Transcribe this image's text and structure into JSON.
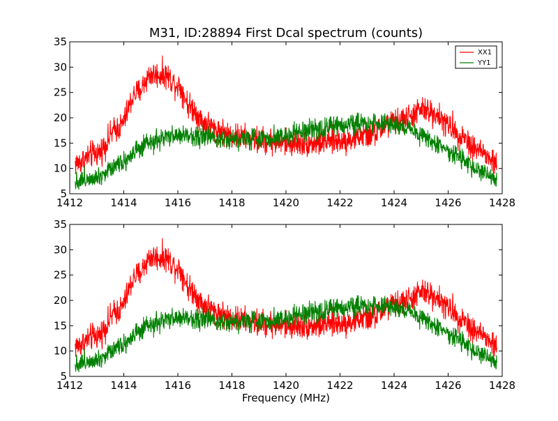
{
  "chart_data": [
    {
      "type": "line",
      "title": "M31, ID:28894 First Dcal spectrum (counts)",
      "xlabel": "",
      "ylabel": "",
      "xlim": [
        1412,
        1428
      ],
      "ylim": [
        5,
        35
      ],
      "xticks": [
        "1412",
        "1414",
        "1416",
        "1418",
        "1420",
        "1422",
        "1424",
        "1426",
        "1428"
      ],
      "yticks": [
        "5",
        "10",
        "15",
        "20",
        "25",
        "30",
        "35"
      ],
      "grid": false,
      "legend": {
        "placement": "top-right",
        "entries": [
          "XX1",
          "YY1"
        ]
      },
      "series": [
        {
          "name": "XX1",
          "color": "#ff0000",
          "noise": 1.3,
          "x": [
            1412.2,
            1413,
            1413.8,
            1414.5,
            1415,
            1415.5,
            1416,
            1416.5,
            1417,
            1417.5,
            1418,
            1418.5,
            1419,
            1420,
            1421,
            1422,
            1423,
            1424,
            1424.5,
            1425,
            1425.5,
            1426,
            1426.5,
            1427,
            1427.8
          ],
          "y": [
            11,
            13,
            18,
            25,
            28.5,
            28.5,
            26.5,
            22,
            19,
            17.5,
            16.5,
            16,
            15.5,
            15,
            15,
            15.5,
            16.5,
            19,
            20,
            21.5,
            21,
            18.5,
            16.5,
            14,
            11
          ]
        },
        {
          "name": "YY1",
          "color": "#008000",
          "noise": 1.0,
          "x": [
            1412.2,
            1413,
            1414,
            1414.5,
            1415,
            1415.5,
            1416,
            1416.5,
            1417,
            1418,
            1419,
            1420,
            1421,
            1422,
            1422.5,
            1423,
            1423.5,
            1424,
            1424.5,
            1425,
            1426,
            1427,
            1427.8
          ],
          "y": [
            7.5,
            8.5,
            11.5,
            13.5,
            15,
            16,
            16.5,
            16.5,
            16.3,
            15.8,
            16,
            16.5,
            17.5,
            18.5,
            19,
            19,
            19,
            18.5,
            18,
            16.5,
            13.5,
            10,
            7.8
          ]
        }
      ]
    },
    {
      "type": "line",
      "title": "",
      "xlabel": "Frequency (MHz)",
      "ylabel": "",
      "xlim": [
        1412,
        1428
      ],
      "ylim": [
        5,
        35
      ],
      "xticks": [
        "1412",
        "1414",
        "1416",
        "1418",
        "1420",
        "1422",
        "1424",
        "1426",
        "1428"
      ],
      "yticks": [
        "5",
        "10",
        "15",
        "20",
        "25",
        "30",
        "35"
      ],
      "grid": false,
      "series": [
        {
          "color": "#ff0000",
          "noise": 1.3,
          "x": [
            1412.2,
            1413,
            1413.8,
            1414.5,
            1415,
            1415.5,
            1416,
            1416.5,
            1417,
            1417.5,
            1418,
            1418.5,
            1419,
            1420,
            1421,
            1422,
            1423,
            1424,
            1424.5,
            1425,
            1425.5,
            1426,
            1426.5,
            1427,
            1427.8
          ],
          "y": [
            11,
            13,
            18,
            25,
            28.5,
            28.5,
            26.5,
            22,
            19,
            17.5,
            16.5,
            16,
            15.5,
            15,
            15,
            15.5,
            16.5,
            19,
            20,
            21.5,
            21,
            18.5,
            16.5,
            14,
            11
          ]
        },
        {
          "color": "#008000",
          "noise": 1.0,
          "x": [
            1412.2,
            1413,
            1414,
            1414.5,
            1415,
            1415.5,
            1416,
            1416.5,
            1417,
            1418,
            1419,
            1420,
            1421,
            1422,
            1422.5,
            1423,
            1423.5,
            1424,
            1424.5,
            1425,
            1426,
            1427,
            1427.8
          ],
          "y": [
            7.5,
            8.5,
            11.5,
            13.5,
            15,
            16,
            16.5,
            16.5,
            16.3,
            15.8,
            16,
            16.5,
            17.5,
            18.5,
            19,
            19,
            19,
            18.5,
            18,
            16.5,
            13.5,
            10,
            7.8
          ]
        }
      ]
    }
  ]
}
